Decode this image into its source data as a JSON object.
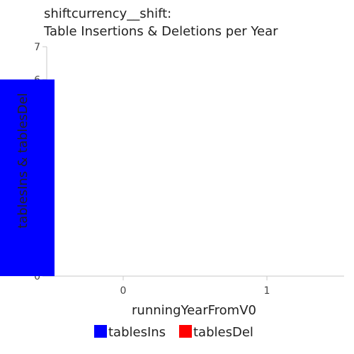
{
  "chart_data": {
    "type": "bar",
    "title": [
      "shiftcurrency__shift:",
      "Table Insertions & Deletions per Year"
    ],
    "xlabel": "runningYearFromV0",
    "ylabel": "tablesIns & tablesDel",
    "categories": [
      "0",
      "1"
    ],
    "series": [
      {
        "name": "tablesIns",
        "color": "#0000ff",
        "values": [
          6,
          0
        ]
      },
      {
        "name": "tablesDel",
        "color": "#ff0000",
        "values": [
          0,
          0
        ]
      }
    ],
    "ylim": [
      0,
      7
    ],
    "yticks": [
      "0",
      "1",
      "2",
      "3",
      "4",
      "5",
      "6",
      "7"
    ],
    "grid": false,
    "legend_position": "bottom"
  }
}
